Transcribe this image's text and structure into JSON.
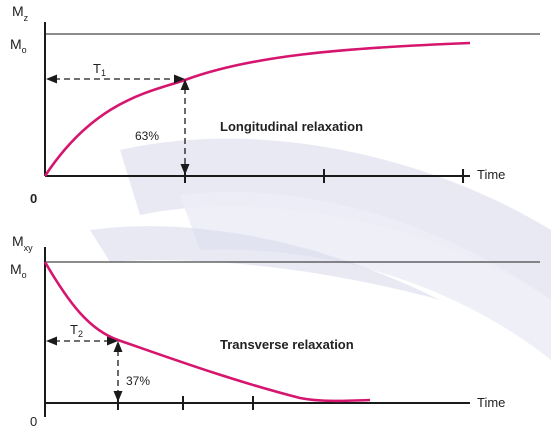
{
  "colors": {
    "curve": "#d6156f",
    "axis": "#1a1a1a",
    "text": "#222222",
    "swoosh": "#cfd0e6"
  },
  "top_panel": {
    "y_symbol": "M",
    "y_subscript": "z",
    "ref_symbol": "M",
    "ref_subscript": "o",
    "time_label": "T",
    "time_subscript": "1",
    "percent": "63%",
    "title": "Longitudinal relaxation",
    "x_label": "Time",
    "origin": "0"
  },
  "bottom_panel": {
    "y_symbol": "M",
    "y_subscript": "xy",
    "ref_symbol": "M",
    "ref_subscript": "o",
    "time_label": "T",
    "time_subscript": "2",
    "percent": "37%",
    "title": "Transverse relaxation",
    "x_label": "Time",
    "origin": "0"
  }
}
